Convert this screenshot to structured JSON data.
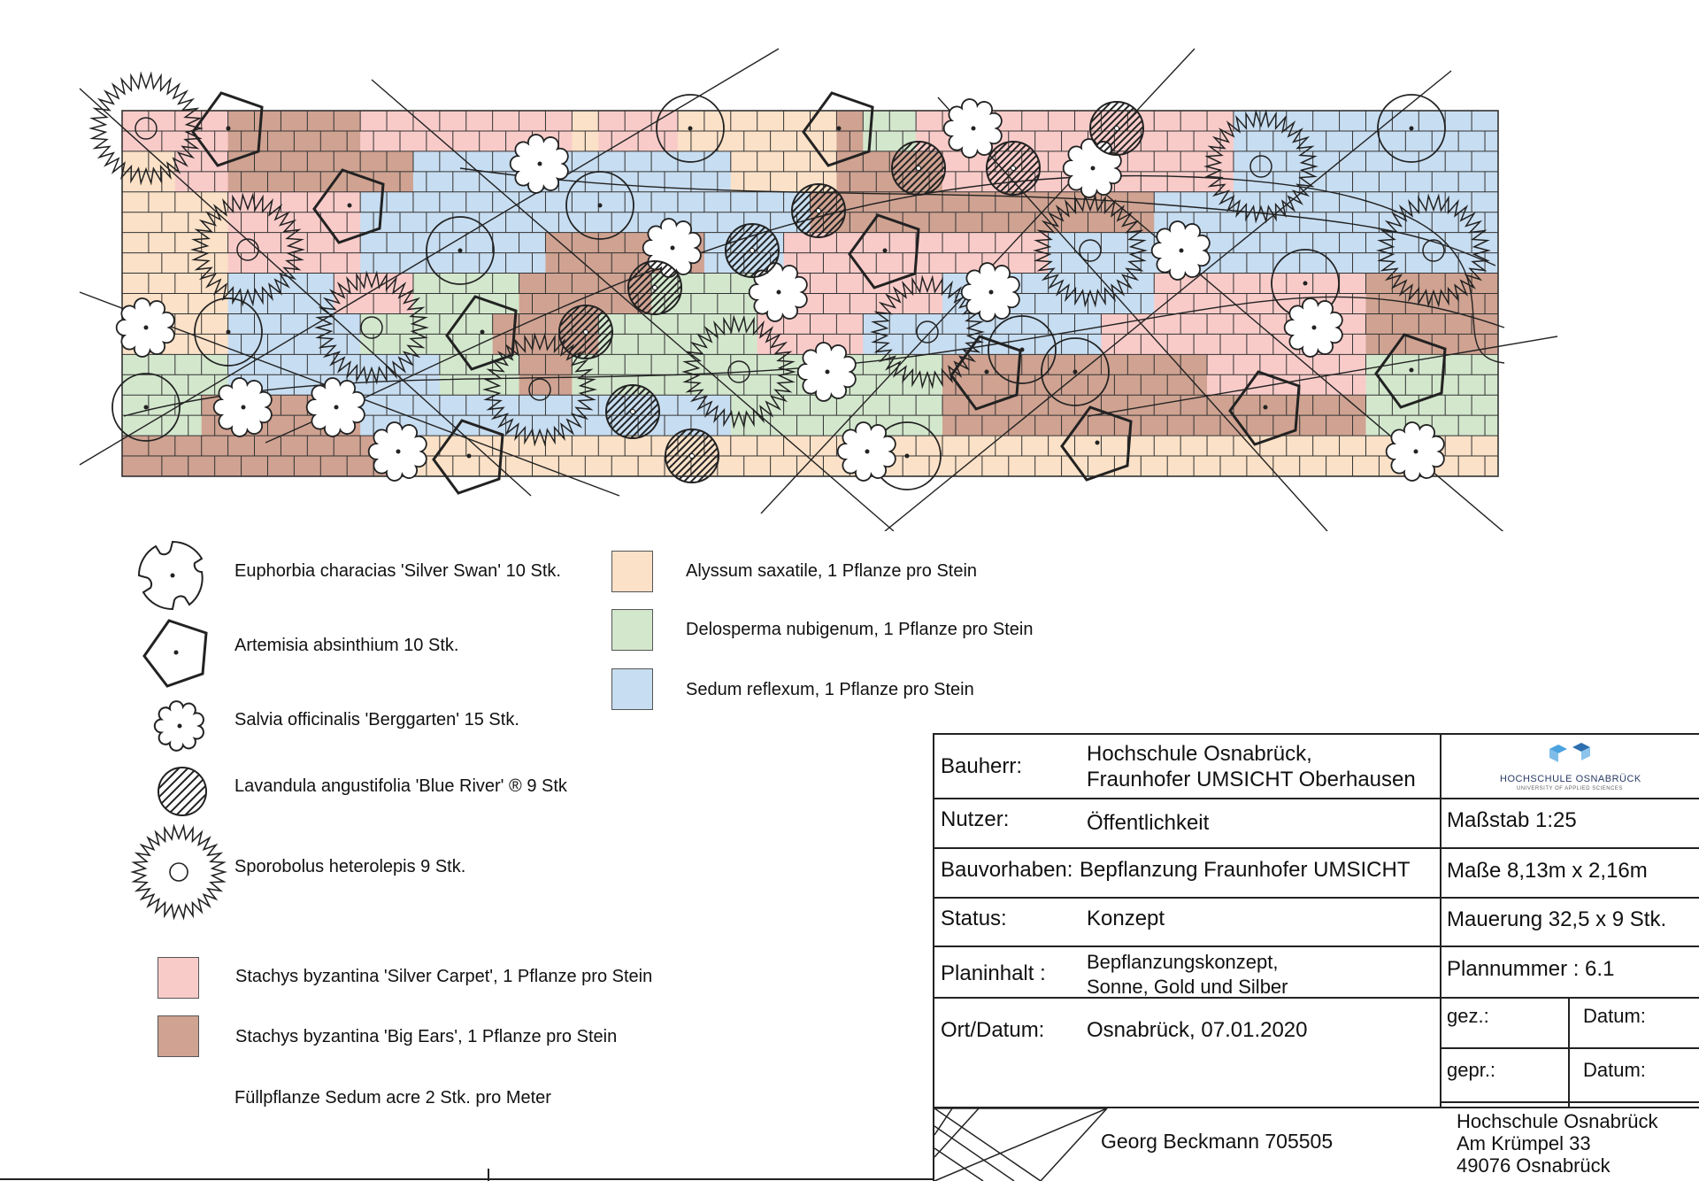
{
  "legend": {
    "symbols": [
      {
        "id": "euphorbia",
        "icon": "euphorbia-symbol",
        "label": "Euphorbia characias 'Silver Swan' 10 Stk."
      },
      {
        "id": "artemisia",
        "icon": "artemisia-symbol",
        "label": "Artemisia absinthium 10 Stk."
      },
      {
        "id": "salvia",
        "icon": "salvia-symbol",
        "label": "Salvia officinalis 'Berggarten' 15 Stk."
      },
      {
        "id": "lavandula",
        "icon": "lavandula-symbol",
        "label": "Lavandula angustifolia 'Blue River' ® 9 Stk"
      },
      {
        "id": "sporobolus",
        "icon": "sporobolus-symbol",
        "label": "Sporobolus heterolepis 9 Stk."
      }
    ],
    "swatches": [
      {
        "id": "alyssum",
        "color": "#fbe1c7",
        "label": "Alyssum saxatile, 1 Pflanze pro Stein"
      },
      {
        "id": "delosperma",
        "color": "#d3e7cd",
        "label": "Delosperma nubigenum, 1 Pflanze pro Stein"
      },
      {
        "id": "sedum-reflexum",
        "color": "#c7ddf1",
        "label": "Sedum reflexum, 1 Pflanze pro Stein"
      },
      {
        "id": "stachys-silver",
        "color": "#f8cbc9",
        "label": "Stachys byzantina 'Silver Carpet', 1 Pflanze pro Stein"
      },
      {
        "id": "stachys-bigears",
        "color": "#cfa291",
        "label": "Stachys byzantina 'Big Ears', 1 Pflanze pro Stein"
      }
    ],
    "note": "Füllpflanze Sedum acre 2 Stk. pro Meter"
  },
  "title_block": {
    "bauherr_label": "Bauherr:",
    "bauherr_line1": "Hochschule Osnabrück,",
    "bauherr_line2": "Fraunhofer UMSICHT Oberhausen",
    "nutzer_label": "Nutzer:",
    "nutzer_value": "Öffentlichkeit",
    "bauvorhaben_label": "Bauvorhaben:",
    "bauvorhaben_value": "Bepflanzung Fraunhofer UMSICHT",
    "status_label": "Status:",
    "status_value": "Konzept",
    "planinhalt_label": "Planinhalt :",
    "planinhalt_line1": "Bepflanzungskonzept,",
    "planinhalt_line2": "Sonne, Gold und Silber",
    "ort_label": "Ort/Datum:",
    "ort_value": "Osnabrück, 07.01.2020",
    "massstab": "Maßstab 1:25",
    "masse": "Maße 8,13m x 2,16m",
    "mauerung": "Mauerung 32,5 x 9 Stk.",
    "plannummer": "Plannummer : 6.1",
    "gez": "gez.:",
    "datum1": "Datum:",
    "gepr": "gepr.:",
    "datum2": "Datum:",
    "author": "Georg Beckmann 705505",
    "address_line1": "Hochschule Osnabrück",
    "address_line2": "Am Krümpel 33",
    "address_line3": "49076 Osnabrück",
    "logo_text": "HOCHSCHULE OSNABRÜCK",
    "logo_subtext": "UNIVERSITY OF APPLIED SCIENCES",
    "logo_color": "#4aa3df"
  },
  "wall_grid": [
    "PPPPBBBBBPPPPPPPPAPPPAAAAAABGGPPPPPPPPPPPPSSSSSSSSSS",
    "AAPPBBBBBBBSSSSSSSSSSSSAAAABBBBPPPPPPPPPPPSSSSSSSSSS",
    "AAAAPPPPPSSSSSSSSSSSSSSSSSBBBBBBBBBBBBBSSSSSSSSSSSSS",
    "AAAAPPPPPSSSSSSSBBBBBBSSSPPPPPPPPPPSSSSSSSSSSSSSSSSS",
    "AAAASSSSPPPGGGGBBBBBGGGGPPPPPPPSSSSSSSSPPPPPPPPBBBBB",
    "AAAASSSSSGGGGGBBBBGGGGGGPPPPSSSSSSSSSPPPPPPPPPPBBBBB",
    "GGGGSSSSSSSSGGGBBGGGGGGGGGGGGGGBBBBBBBBBBPPPPPPGGGGG",
    "GGGBBBBBBSSSSSSSSSSSSSSGGGGGGGGBBBBBBBBBBBBBBBBGGGGG",
    "BBBBBBBBBBBAAAAAAAAAAAAAAAAAAAAAAAAAAAAAAAAAAAAAAAAA"
  ]
}
